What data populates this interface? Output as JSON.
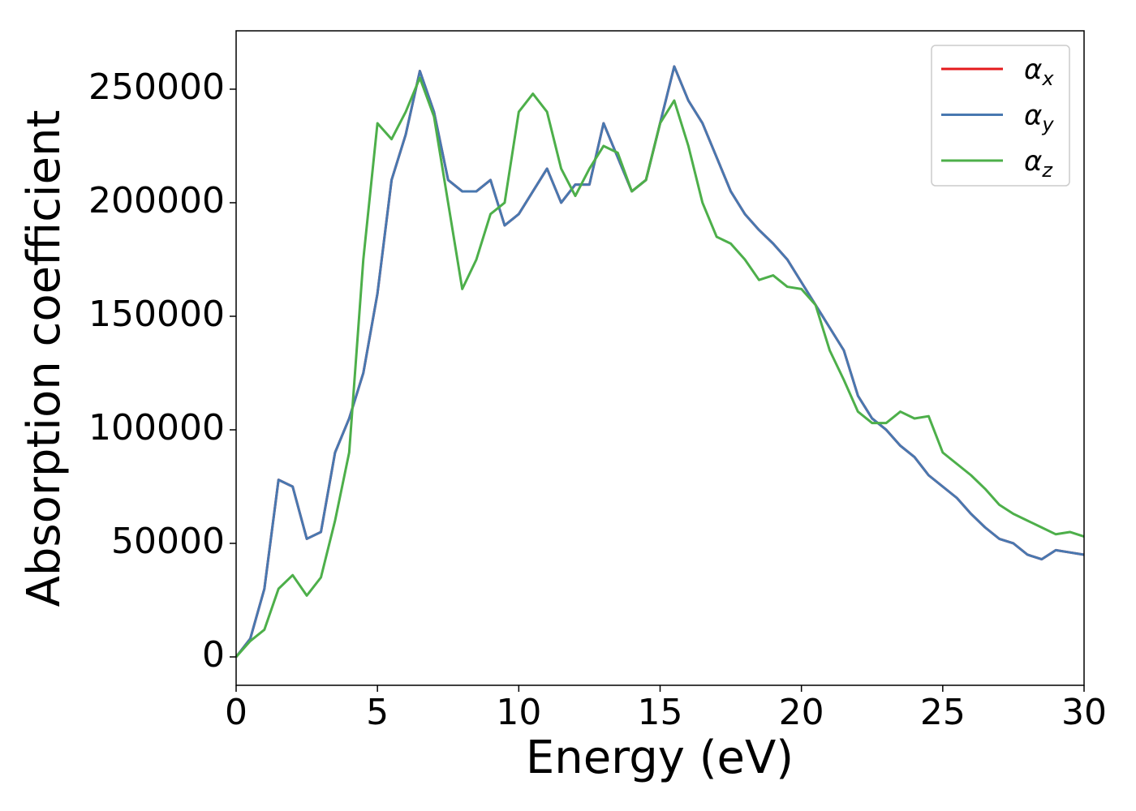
{
  "chart_data": {
    "type": "line",
    "xlabel": "Energy (eV)",
    "ylabel": "Absorption coefficient",
    "xlim": [
      0,
      30
    ],
    "ylim": [
      -12500,
      275700
    ],
    "xticks": [
      0,
      5,
      10,
      15,
      20,
      25,
      30
    ],
    "yticks": [
      0,
      50000,
      100000,
      150000,
      200000,
      250000
    ],
    "legend": "upper right",
    "x": [
      0,
      0.5,
      1,
      1.5,
      2,
      2.5,
      3,
      3.5,
      4,
      4.5,
      5,
      5.5,
      6,
      6.5,
      7,
      7.5,
      8,
      8.5,
      9,
      9.5,
      10,
      10.5,
      11,
      11.5,
      12,
      12.5,
      13,
      13.5,
      14,
      14.5,
      15,
      15.5,
      16,
      16.5,
      17,
      17.5,
      18,
      18.5,
      19,
      19.5,
      20,
      20.5,
      21,
      21.5,
      22,
      22.5,
      23,
      23.5,
      24,
      24.5,
      25,
      25.5,
      26,
      26.5,
      27,
      27.5,
      28,
      28.5,
      29,
      29.5,
      30
    ],
    "series": [
      {
        "name": "α_x",
        "color": "#e41a1c",
        "values": [
          0,
          8000,
          30000,
          78000,
          75000,
          52000,
          55000,
          90000,
          105000,
          125000,
          160000,
          210000,
          230000,
          258000,
          240000,
          210000,
          205000,
          205000,
          210000,
          190000,
          195000,
          205000,
          215000,
          200000,
          208000,
          208000,
          235000,
          220000,
          205000,
          210000,
          235000,
          260000,
          245000,
          235000,
          220000,
          205000,
          195000,
          188000,
          182000,
          175000,
          165000,
          155000,
          145000,
          135000,
          115000,
          105000,
          100000,
          93000,
          88000,
          80000,
          75000,
          70000,
          63000,
          57000,
          52000,
          50000,
          45000,
          43000,
          47000,
          46000,
          45000
        ]
      },
      {
        "name": "α_y",
        "color": "#4878b0",
        "values": [
          0,
          8000,
          30000,
          78000,
          75000,
          52000,
          55000,
          90000,
          105000,
          125000,
          160000,
          210000,
          230000,
          258000,
          240000,
          210000,
          205000,
          205000,
          210000,
          190000,
          195000,
          205000,
          215000,
          200000,
          208000,
          208000,
          235000,
          220000,
          205000,
          210000,
          235000,
          260000,
          245000,
          235000,
          220000,
          205000,
          195000,
          188000,
          182000,
          175000,
          165000,
          155000,
          145000,
          135000,
          115000,
          105000,
          100000,
          93000,
          88000,
          80000,
          75000,
          70000,
          63000,
          57000,
          52000,
          50000,
          45000,
          43000,
          47000,
          46000,
          45000
        ]
      },
      {
        "name": "α_z",
        "color": "#4daf4a",
        "values": [
          0,
          7000,
          12000,
          30000,
          36000,
          27000,
          35000,
          60000,
          90000,
          175000,
          235000,
          228000,
          240000,
          255000,
          238000,
          200000,
          162000,
          175000,
          195000,
          200000,
          240000,
          248000,
          240000,
          215000,
          203000,
          215000,
          225000,
          222000,
          205000,
          210000,
          235000,
          245000,
          225000,
          200000,
          185000,
          182000,
          175000,
          166000,
          168000,
          163000,
          162000,
          155000,
          135000,
          122000,
          108000,
          103000,
          103000,
          108000,
          105000,
          106000,
          90000,
          85000,
          80000,
          74000,
          67000,
          63000,
          60000,
          57000,
          54000,
          55000,
          53000
        ]
      }
    ]
  }
}
